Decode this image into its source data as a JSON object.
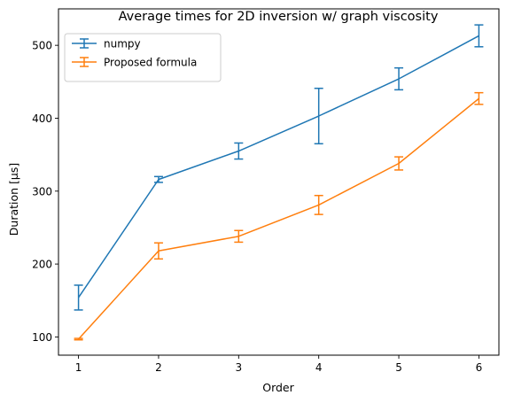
{
  "chart_data": {
    "type": "line",
    "title": "Average times for 2D inversion w/ graph viscosity",
    "xlabel": "Order",
    "ylabel": "Duration [µs]",
    "x": [
      1,
      2,
      3,
      4,
      5,
      6
    ],
    "xticks": [
      1,
      2,
      3,
      4,
      5,
      6
    ],
    "yticks": [
      100,
      200,
      300,
      400,
      500
    ],
    "xlim": [
      0.75,
      6.25
    ],
    "ylim": [
      75,
      550
    ],
    "grid": false,
    "legend_position": "upper left",
    "error_bars": true,
    "series": [
      {
        "name": "numpy",
        "color": "#1f77b4",
        "values": [
          154,
          316,
          355,
          403,
          454,
          513
        ],
        "errors": [
          17,
          4,
          11,
          38,
          15,
          15
        ]
      },
      {
        "name": "Proposed formula",
        "color": "#ff7f0e",
        "values": [
          97,
          218,
          238,
          281,
          338,
          427
        ],
        "errors": [
          1,
          11,
          8,
          13,
          9,
          8
        ]
      }
    ]
  }
}
